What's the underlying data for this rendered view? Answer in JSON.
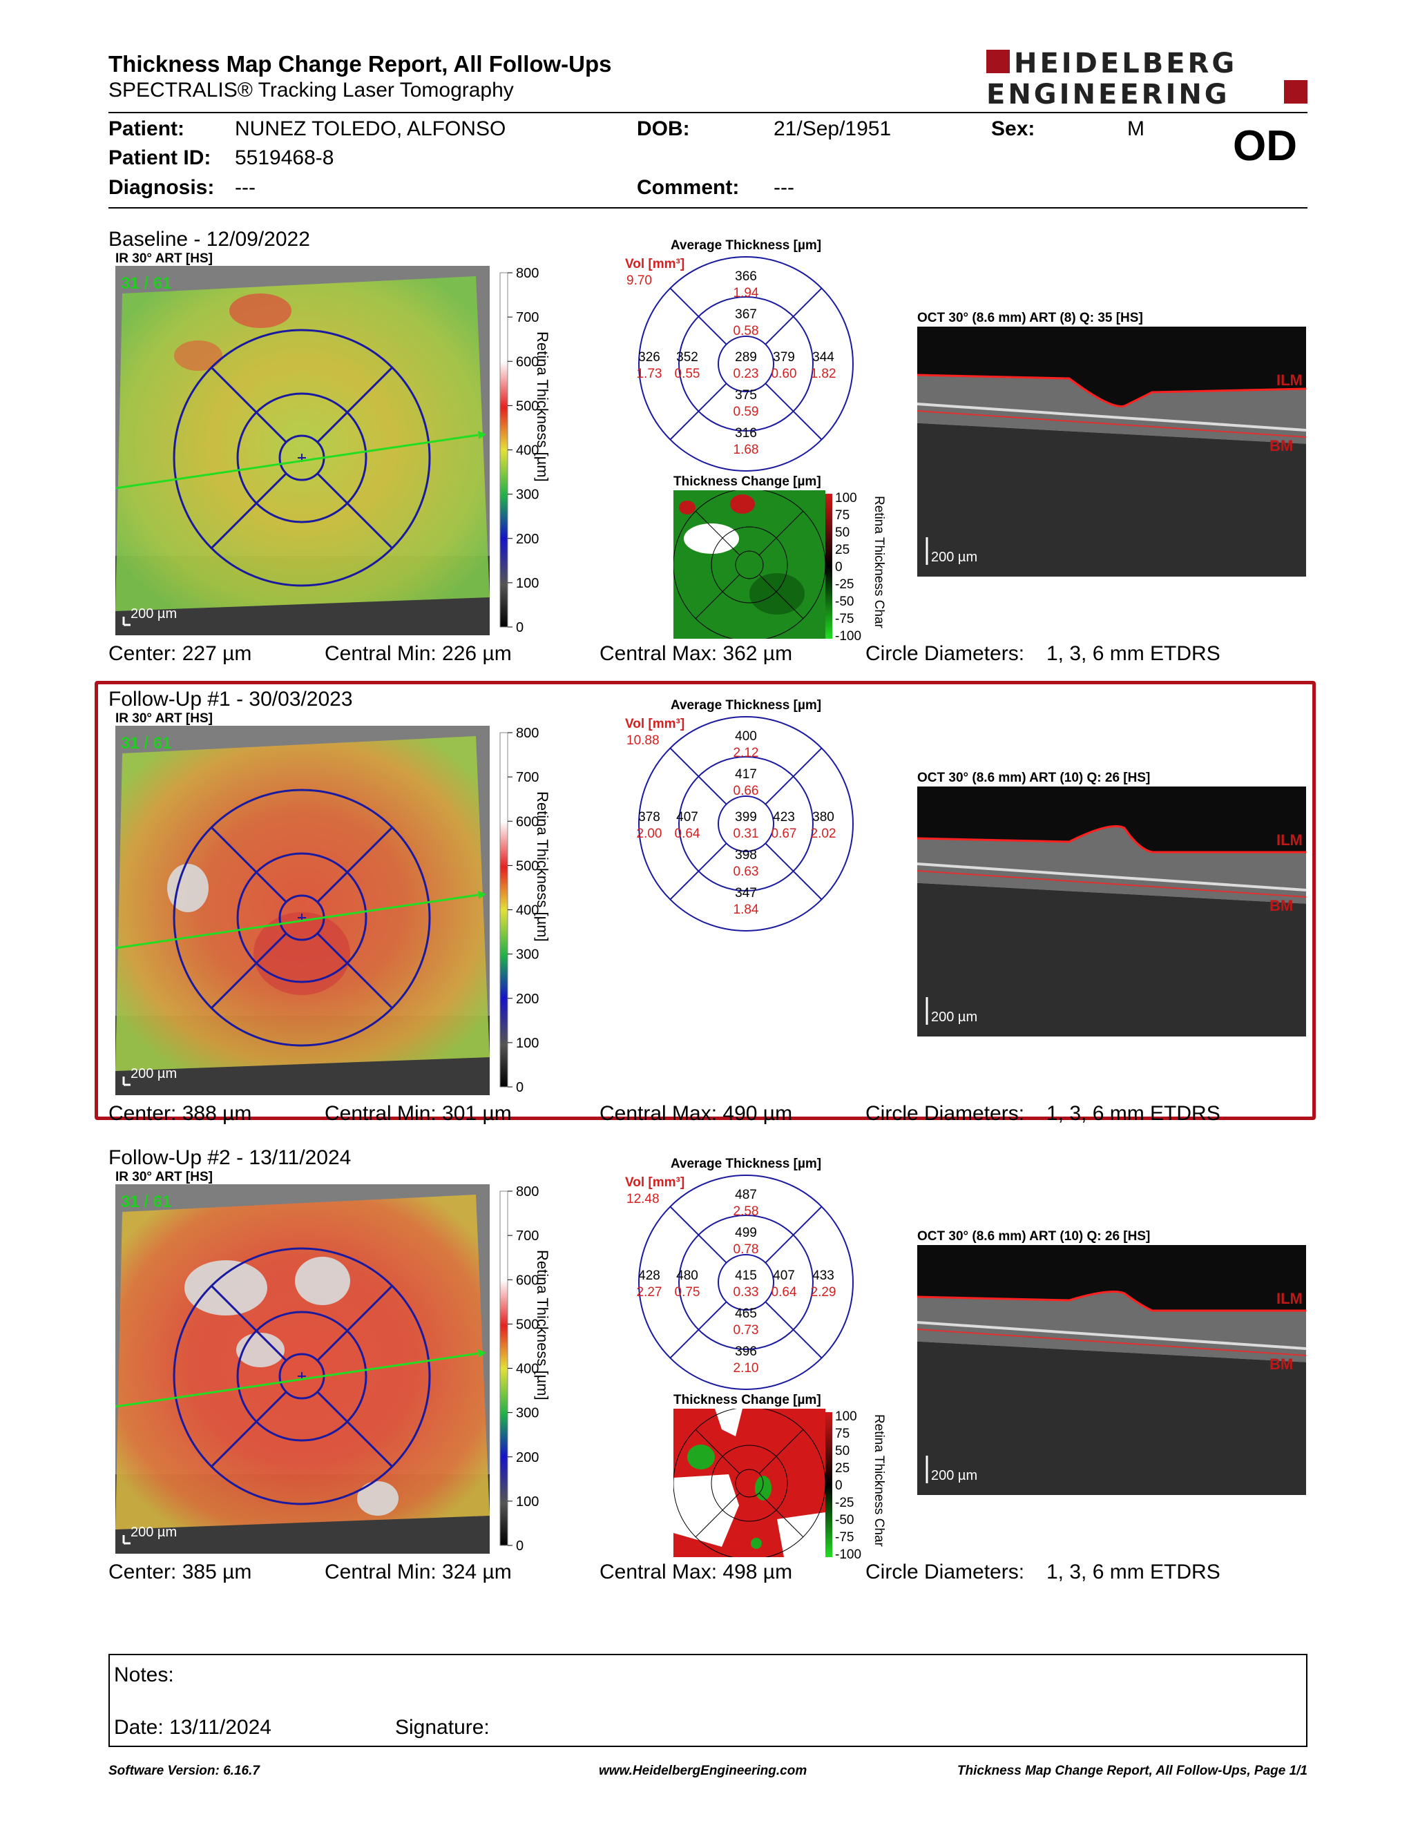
{
  "header": {
    "title": "Thickness Map Change Report, All Follow-Ups",
    "subtitle": "SPECTRALIS® Tracking Laser Tomography",
    "logo_line1": "HEIDELBERG",
    "logo_line2": "ENGINEERING"
  },
  "patient": {
    "patient_label": "Patient:",
    "patient_value": "NUNEZ TOLEDO, ALFONSO",
    "id_label": "Patient ID:",
    "id_value": "5519468-8",
    "diagnosis_label": "Diagnosis:",
    "diagnosis_value": "---",
    "dob_label": "DOB:",
    "dob_value": "21/Sep/1951",
    "comment_label": "Comment:",
    "comment_value": "---",
    "sex_label": "Sex:",
    "sex_value": "M",
    "eye": "OD"
  },
  "common": {
    "ir_label": "IR 30° ART [HS]",
    "fixation": "31 / 61",
    "scale_200": "200 µm",
    "retina_scale_title": "Retina Thickness [µm]",
    "retina_ticks": [
      "800",
      "700",
      "600",
      "500",
      "400",
      "300",
      "200",
      "100",
      "0"
    ],
    "avg_title": "Average Thickness [µm]",
    "vol_label": "Vol [mm³]",
    "tc_title": "Thickness Change [µm]",
    "tc_ticks": [
      "100",
      "75",
      "50",
      "25",
      "0",
      "-25",
      "-50",
      "-75",
      "-100"
    ],
    "tc_scale_title": "Retina Thickness Char",
    "circle_label": "Circle Diameters:",
    "circle_value": "1, 3, 6 mm ETDRS",
    "ilm": "ILM",
    "bm": "BM"
  },
  "exams": [
    {
      "title": "Baseline - 12/09/2022",
      "oct_label": "OCT 30° (8.6 mm) ART (8) Q: 35 [HS]",
      "vol": "9.70",
      "sectors": {
        "outer_sup": [
          "366",
          "1.94"
        ],
        "inner_sup": [
          "367",
          "0.58"
        ],
        "outer_temp": [
          "326",
          "1.73"
        ],
        "inner_temp": [
          "352",
          "0.55"
        ],
        "center": [
          "289",
          "0.23"
        ],
        "inner_nasal": [
          "379",
          "0.60"
        ],
        "outer_nasal": [
          "344",
          "1.82"
        ],
        "inner_inf": [
          "375",
          "0.59"
        ],
        "outer_inf": [
          "316",
          "1.68"
        ]
      },
      "center": "Center: 227 µm",
      "central_min": "Central Min: 226 µm",
      "central_max": "Central Max: 362 µm",
      "has_change": true,
      "highlight": false
    },
    {
      "title": "Follow-Up #1 - 30/03/2023",
      "oct_label": "OCT 30° (8.6 mm) ART (10) Q: 26 [HS]",
      "vol": "10.88",
      "sectors": {
        "outer_sup": [
          "400",
          "2.12"
        ],
        "inner_sup": [
          "417",
          "0.66"
        ],
        "outer_temp": [
          "378",
          "2.00"
        ],
        "inner_temp": [
          "407",
          "0.64"
        ],
        "center": [
          "399",
          "0.31"
        ],
        "inner_nasal": [
          "423",
          "0.67"
        ],
        "outer_nasal": [
          "380",
          "2.02"
        ],
        "inner_inf": [
          "398",
          "0.63"
        ],
        "outer_inf": [
          "347",
          "1.84"
        ]
      },
      "center": "Center: 388 µm",
      "central_min": "Central Min: 301 µm",
      "central_max": "Central Max: 490 µm",
      "has_change": false,
      "highlight": true
    },
    {
      "title": "Follow-Up #2 - 13/11/2024",
      "oct_label": "OCT 30° (8.6 mm) ART (10) Q: 26 [HS]",
      "vol": "12.48",
      "sectors": {
        "outer_sup": [
          "487",
          "2.58"
        ],
        "inner_sup": [
          "499",
          "0.78"
        ],
        "outer_temp": [
          "428",
          "2.27"
        ],
        "inner_temp": [
          "480",
          "0.75"
        ],
        "center": [
          "415",
          "0.33"
        ],
        "inner_nasal": [
          "407",
          "0.64"
        ],
        "outer_nasal": [
          "433",
          "2.29"
        ],
        "inner_inf": [
          "465",
          "0.73"
        ],
        "outer_inf": [
          "396",
          "2.10"
        ]
      },
      "center": "Center: 385 µm",
      "central_min": "Central Min: 324 µm",
      "central_max": "Central Max: 498 µm",
      "has_change": true,
      "highlight": false
    }
  ],
  "notes": {
    "notes_label": "Notes:",
    "date_label": "Date: 13/11/2024",
    "signature_label": "Signature:"
  },
  "footer": {
    "software": "Software Version: 6.16.7",
    "url": "www.HeidelbergEngineering.com",
    "page": "Thickness Map Change Report, All Follow-Ups, Page 1/1"
  },
  "colors": {
    "accent_red": "#b0101a",
    "etdrs_blue": "#1a1aa0",
    "value_red": "#d42020",
    "fixation_green": "#22cc22"
  }
}
